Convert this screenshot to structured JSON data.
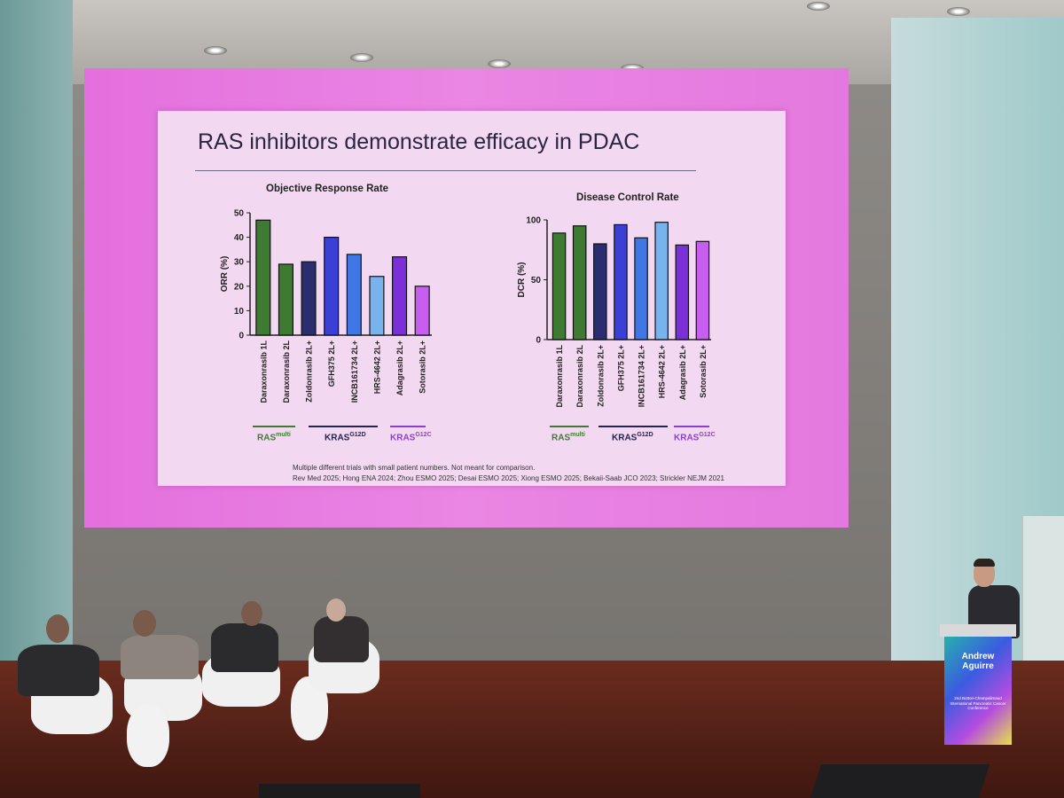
{
  "slide": {
    "title": "RAS inhibitors demonstrate efficacy in PDAC",
    "footnote_line1": "Multiple different trials with small patient numbers. Not meant for comparison.",
    "footnote_line2": "Rev Med 2025; Hong ENA 2024; Zhou ESMO 2025; Desai ESMO 2025; Xiong ESMO 2025; Bekaii-Saab JCO 2023; Strickler NEJM 2021"
  },
  "groups": [
    {
      "label": "RAS",
      "sup": "multi",
      "color": "#3f7a33"
    },
    {
      "label": "KRAS",
      "sup": "G12D",
      "color": "#23234f"
    },
    {
      "label": "KRAS",
      "sup": "G12C",
      "color": "#8a3fd0"
    }
  ],
  "podium": {
    "name_line1": "Andrew",
    "name_line2": "Aguirre",
    "subtitle": "2nd Botton-Champalimaud International Pancreatic Cancer Conference"
  },
  "colors": {
    "screen": "#e87fe1",
    "slide_bg": "#f3d8f1"
  },
  "chart_data": [
    {
      "type": "bar",
      "title": "Objective Response Rate",
      "ylabel": "ORR (%)",
      "ylim": [
        0,
        50
      ],
      "yticks": [
        "0",
        "10",
        "20",
        "30",
        "40",
        "50"
      ],
      "categories": [
        "Daraxonrasib 1L",
        "Daraxonrasib 2L",
        "Zoldonrasib 2L+",
        "GFH375 2L+",
        "INCB161734 2L+",
        "HRS-4642 2L+",
        "Adagrasib 2L+",
        "Sotorasib 2L+"
      ],
      "values": [
        47,
        29,
        30,
        40,
        33,
        24,
        32,
        20
      ],
      "bar_colors": [
        "#3f7a33",
        "#3f7a33",
        "#2a2d6e",
        "#3a3fd8",
        "#3f78e6",
        "#79b3ee",
        "#7b2fd9",
        "#c75ef0"
      ]
    },
    {
      "type": "bar",
      "title": "Disease Control Rate",
      "ylabel": "DCR (%)",
      "ylim": [
        0,
        100
      ],
      "yticks": [
        "0",
        "50",
        "100"
      ],
      "categories": [
        "Daraxonrasib 1L",
        "Daraxonrasib 2L",
        "Zoldonrasib 2L+",
        "GFH375 2L+",
        "INCB161734 2L+",
        "HRS-4642 2L+",
        "Adagrasib 2L+",
        "Sotorasib 2L+"
      ],
      "values": [
        89,
        95,
        80,
        96,
        85,
        98,
        79,
        82
      ],
      "bar_colors": [
        "#3f7a33",
        "#3f7a33",
        "#2a2d6e",
        "#3a3fd8",
        "#3f78e6",
        "#79b3ee",
        "#7b2fd9",
        "#c75ef0"
      ]
    }
  ]
}
